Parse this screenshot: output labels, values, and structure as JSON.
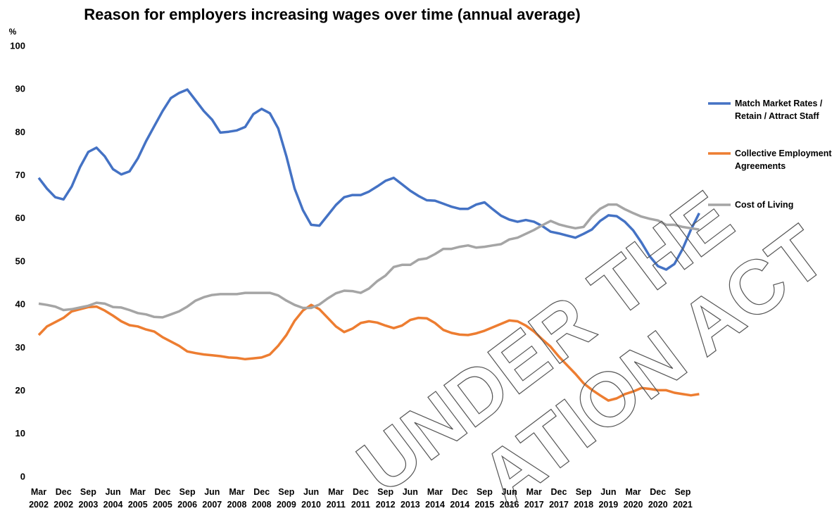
{
  "chart_data": {
    "type": "line",
    "title": "Reason for employers increasing wages over time (annual average)",
    "y_label": "%",
    "categories": [
      "Mar 2002",
      null,
      null,
      "Dec 2002",
      null,
      null,
      "Sep 2003",
      null,
      null,
      "Jun 2004",
      null,
      null,
      "Mar 2005",
      null,
      null,
      "Dec 2005",
      null,
      null,
      "Sep 2006",
      null,
      null,
      "Jun 2007",
      null,
      null,
      "Mar 2008",
      null,
      null,
      "Dec 2008",
      null,
      null,
      "Sep 2009",
      null,
      null,
      "Jun 2010",
      null,
      null,
      "Mar 2011",
      null,
      null,
      "Dec 2011",
      null,
      null,
      "Sep 2012",
      null,
      null,
      "Jun 2013",
      null,
      null,
      "Mar 2014",
      null,
      null,
      "Dec 2014",
      null,
      null,
      "Sep 2015",
      null,
      null,
      "Jun 2016",
      null,
      null,
      "Mar 2017",
      null,
      null,
      "Dec 2017",
      null,
      null,
      "Sep 2018",
      null,
      null,
      "Jun 2019",
      null,
      null,
      "Mar 2020",
      null,
      null,
      "Dec 2020",
      null,
      null,
      "Sep 2021",
      null,
      null
    ],
    "series": [
      {
        "name": "Match Market Rates / Retain / Attract Staff",
        "color": "#4472c4",
        "values": [
          69.5,
          67,
          65,
          64.5,
          67.5,
          72,
          75.5,
          76.5,
          74.5,
          71.5,
          70.3,
          71,
          74,
          78,
          81.5,
          85,
          88,
          89.2,
          90,
          87.5,
          85,
          83,
          80,
          80.2,
          80.5,
          81.3,
          84.3,
          85.5,
          84.5,
          81,
          74.5,
          67,
          62,
          58.6,
          58.4,
          60.8,
          63.2,
          65,
          65.5,
          65.5,
          66.3,
          67.5,
          68.8,
          69.5,
          68,
          66.5,
          65.3,
          64.3,
          64.2,
          63.5,
          62.8,
          62.3,
          62.3,
          63.3,
          63.8,
          62.2,
          60.7,
          59.8,
          59.3,
          59.7,
          59.3,
          58.3,
          57,
          56.6,
          56.1,
          55.6,
          56.5,
          57.5,
          59.5,
          60.8,
          60.6,
          59.3,
          57.3,
          54.5,
          51.3,
          49,
          48.2,
          49.5,
          53,
          57.5,
          61.3
        ]
      },
      {
        "name": "Collective Employment Agreements",
        "color": "#ed7d31",
        "values": [
          33,
          35,
          36,
          37,
          38.5,
          39,
          39.5,
          39.6,
          38.7,
          37.5,
          36.2,
          35.3,
          35,
          34.3,
          33.8,
          32.5,
          31.5,
          30.5,
          29.2,
          28.8,
          28.5,
          28.3,
          28.1,
          27.8,
          27.7,
          27.4,
          27.6,
          27.8,
          28.5,
          30.5,
          33,
          36.3,
          38.7,
          40,
          39,
          37,
          35,
          33.7,
          34.5,
          35.8,
          36.2,
          35.9,
          35.2,
          34.6,
          35.2,
          36.5,
          37,
          36.9,
          35.8,
          34.2,
          33.5,
          33.1,
          33,
          33.4,
          34,
          34.8,
          35.6,
          36.4,
          36.2,
          35.2,
          33.8,
          32,
          30.3,
          28,
          26,
          24,
          21.8,
          20.3,
          19,
          17.8,
          18.3,
          19.3,
          19.9,
          20.7,
          20.5,
          20.2,
          20.2,
          19.6,
          19.3,
          19,
          19.3
        ]
      },
      {
        "name": "Cost of Living",
        "color": "#a5a5a5",
        "values": [
          40.3,
          40,
          39.6,
          38.8,
          39,
          39.4,
          39.8,
          40.5,
          40.3,
          39.5,
          39.4,
          38.8,
          38.1,
          37.8,
          37.2,
          37.1,
          37.8,
          38.5,
          39.6,
          41,
          41.8,
          42.3,
          42.5,
          42.5,
          42.5,
          42.8,
          42.8,
          42.8,
          42.8,
          42.2,
          41,
          40,
          39.3,
          39.3,
          40.1,
          41.5,
          42.7,
          43.3,
          43.2,
          42.8,
          43.8,
          45.5,
          46.8,
          48.8,
          49.3,
          49.3,
          50.5,
          50.8,
          51.8,
          53,
          53,
          53.5,
          53.8,
          53.3,
          53.5,
          53.8,
          54.1,
          55.2,
          55.6,
          56.5,
          57.4,
          58.5,
          59.5,
          58.7,
          58.2,
          57.8,
          58.1,
          60.5,
          62.3,
          63.3,
          63.3,
          62.2,
          61.3,
          60.5,
          60,
          59.6,
          58.6,
          58.6,
          58.1,
          57.8,
          57.5
        ]
      }
    ],
    "ylim": [
      0,
      100
    ],
    "yticks": [
      0,
      10,
      20,
      30,
      40,
      50,
      60,
      70,
      80,
      90,
      100
    ],
    "grid": false,
    "legend": "right",
    "watermark": [
      "UNDER THE",
      "ATION ACT"
    ]
  }
}
